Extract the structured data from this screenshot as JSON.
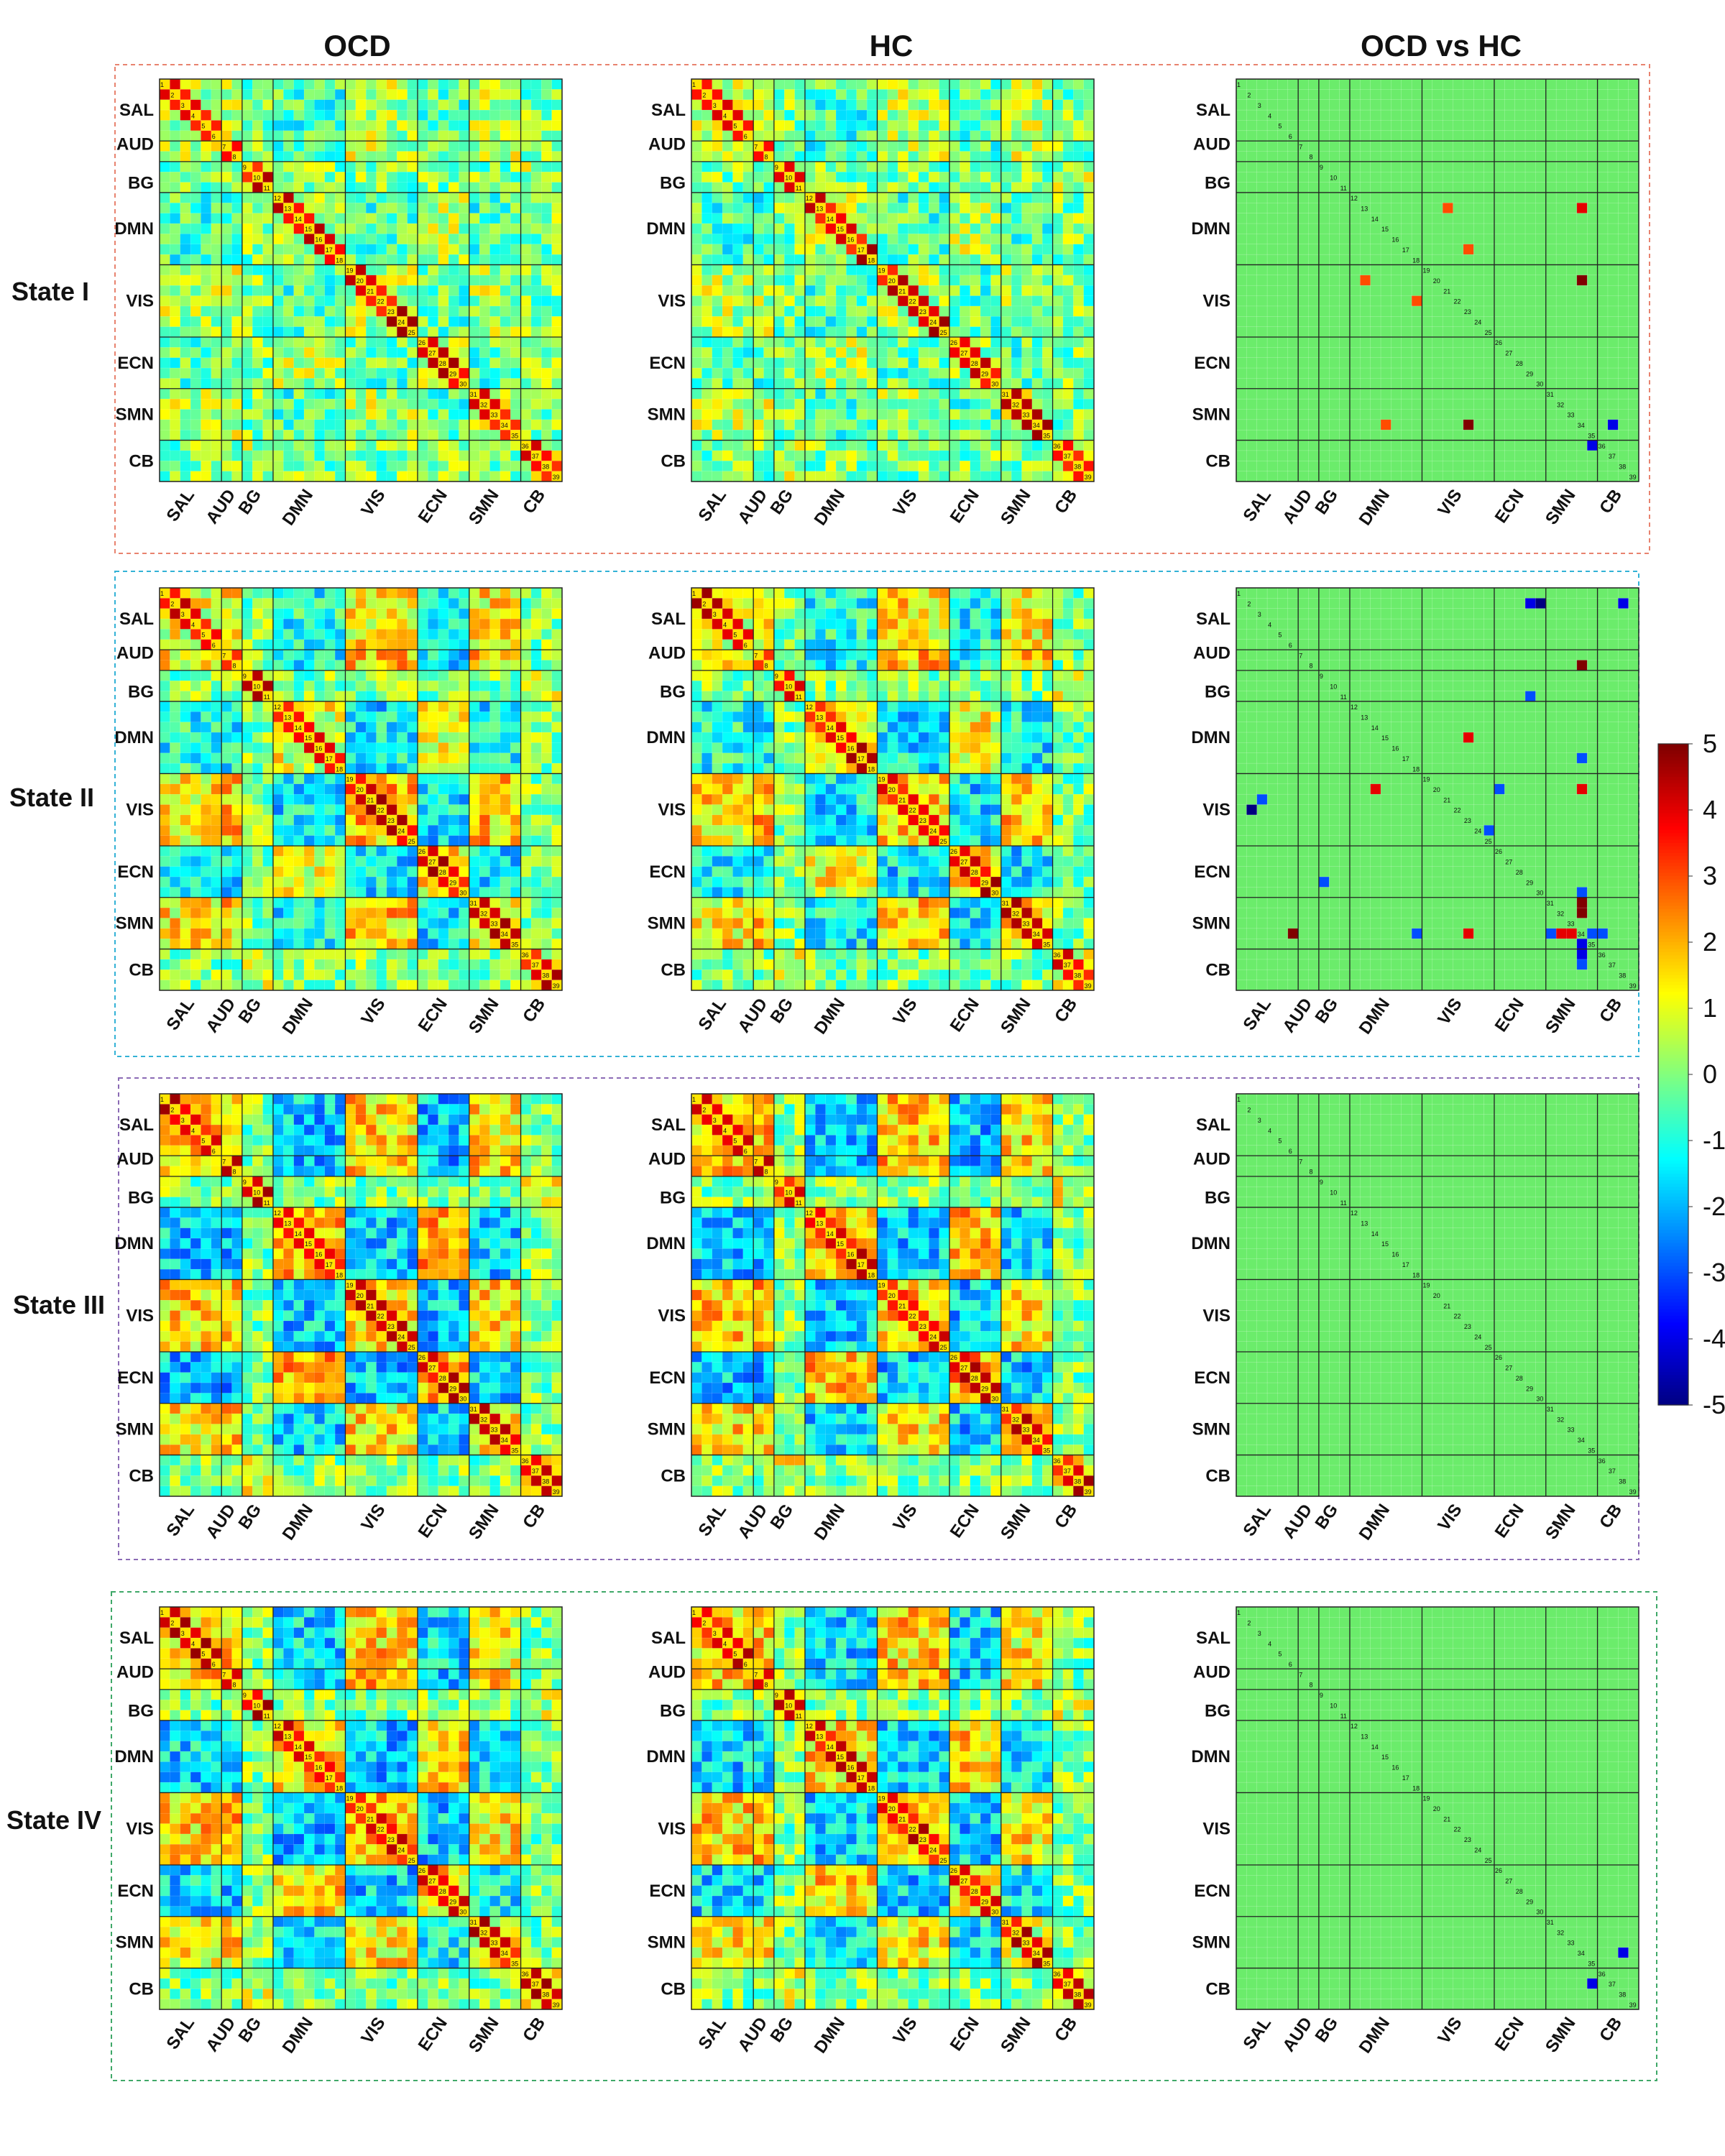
{
  "columns": [
    "OCD",
    "HC",
    "OCD vs HC"
  ],
  "states": [
    "State I",
    "State II",
    "State III",
    "State IV"
  ],
  "network_labels": [
    "SAL",
    "AUD",
    "BG",
    "DMN",
    "VIS",
    "ECN",
    "SMN",
    "CB"
  ],
  "colors": {
    "frame_state1": "#e8836f",
    "frame_state2": "#33b2d6",
    "frame_state3": "#8b6bb5",
    "frame_state4": "#3fa868",
    "neutral": "#6bec6b"
  },
  "chart_data": {
    "type": "heatmap",
    "title": "",
    "n_components": 39,
    "networks": [
      {
        "name": "SAL",
        "components": [
          1,
          6
        ]
      },
      {
        "name": "AUD",
        "components": [
          7,
          8
        ]
      },
      {
        "name": "BG",
        "components": [
          9,
          11
        ]
      },
      {
        "name": "DMN",
        "components": [
          12,
          18
        ]
      },
      {
        "name": "VIS",
        "components": [
          19,
          25
        ]
      },
      {
        "name": "ECN",
        "components": [
          26,
          30
        ]
      },
      {
        "name": "SMN",
        "components": [
          31,
          35
        ]
      },
      {
        "name": "CB",
        "components": [
          36,
          39
        ]
      }
    ],
    "colorbar": {
      "min": -5,
      "max": 5,
      "ticks": [
        5,
        4,
        3,
        2,
        1,
        0,
        -1,
        -2,
        -3,
        -4,
        -5
      ],
      "colormap": "jet"
    },
    "significant_differences": [
      {
        "state": "State I",
        "cells": [
          [
            13,
            21,
            3
          ],
          [
            13,
            34,
            4
          ],
          [
            17,
            23,
            3
          ],
          [
            20,
            13,
            3
          ],
          [
            20,
            34,
            5
          ],
          [
            22,
            18,
            3
          ],
          [
            34,
            15,
            3
          ],
          [
            34,
            23,
            5
          ],
          [
            34,
            37,
            -4
          ],
          [
            36,
            35,
            -4
          ]
        ]
      },
      {
        "state": "State II",
        "cells": [
          [
            2,
            29,
            -4
          ],
          [
            2,
            30,
            -5
          ],
          [
            2,
            38,
            -4
          ],
          [
            8,
            34,
            5
          ],
          [
            11,
            29,
            -3
          ],
          [
            15,
            23,
            4
          ],
          [
            17,
            34,
            -3
          ],
          [
            20,
            14,
            4
          ],
          [
            20,
            26,
            -3
          ],
          [
            20,
            34,
            4
          ],
          [
            21,
            3,
            -3
          ],
          [
            22,
            2,
            -5
          ],
          [
            24,
            25,
            -3
          ],
          [
            29,
            9,
            -3
          ],
          [
            30,
            34,
            -3
          ],
          [
            31,
            34,
            5
          ],
          [
            32,
            34,
            5
          ],
          [
            34,
            6,
            5
          ],
          [
            34,
            18,
            -3
          ],
          [
            34,
            23,
            4
          ],
          [
            34,
            31,
            -3
          ],
          [
            34,
            32,
            4
          ],
          [
            34,
            33,
            4
          ],
          [
            34,
            35,
            -3
          ],
          [
            34,
            36,
            -3
          ],
          [
            35,
            34,
            -4
          ],
          [
            36,
            34,
            -4
          ],
          [
            37,
            34,
            -3
          ]
        ]
      },
      {
        "state": "State III",
        "cells": []
      },
      {
        "state": "State IV",
        "cells": [
          [
            34,
            38,
            -4
          ],
          [
            37,
            35,
            -4
          ]
        ]
      }
    ]
  }
}
